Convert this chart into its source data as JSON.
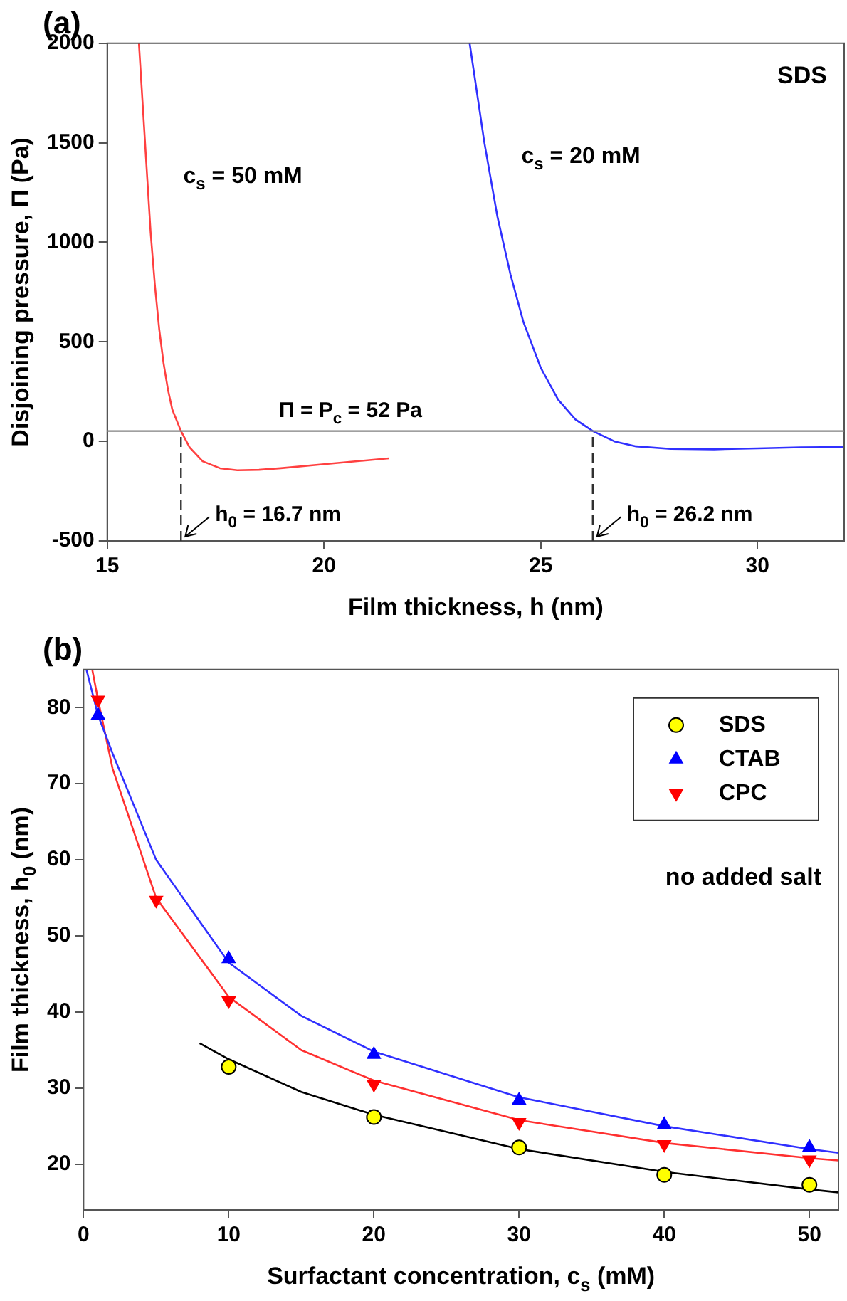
{
  "chart_data": [
    {
      "type": "line",
      "title": "(a)",
      "xlabel": "Film thickness, h (nm)",
      "ylabel": "Disjoining pressure, Π (Pa)",
      "xlim": [
        15,
        32
      ],
      "xticks": [
        15,
        20,
        25,
        30
      ],
      "ylim": [
        -500,
        2000
      ],
      "yticks": [
        -500,
        0,
        500,
        1000,
        1500,
        2000
      ],
      "series": [
        {
          "name": "c$_{s}$ = 50 mM",
          "color": "#ff4040",
          "x": [
            15.73,
            15.9,
            16.0,
            16.1,
            16.2,
            16.3,
            16.4,
            16.5,
            16.7,
            16.9,
            17.2,
            17.6,
            18.0,
            18.5,
            19.0,
            20.0,
            21.0,
            21.5
          ],
          "values": [
            2000,
            1400,
            1050,
            780,
            560,
            390,
            260,
            160,
            52,
            -30,
            -100,
            -135,
            -145,
            -143,
            -135,
            -115,
            -95,
            -85
          ]
        },
        {
          "name": "c$_{s}$ = 20 mM",
          "color": "#3030ff",
          "x": [
            23.36,
            23.7,
            24.0,
            24.3,
            24.6,
            25.0,
            25.4,
            25.8,
            26.2,
            26.7,
            27.2,
            28.0,
            29.0,
            30.0,
            31.0,
            32.0
          ],
          "values": [
            2000,
            1500,
            1130,
            840,
            600,
            370,
            210,
            110,
            52,
            0,
            -25,
            -38,
            -40,
            -35,
            -30,
            -28
          ]
        }
      ],
      "ref_lines": [
        {
          "axis": "y",
          "value": 52,
          "label": "Π = P$_{c}$ = 52 Pa",
          "color": "#808080"
        },
        {
          "axis": "x",
          "value": 16.7,
          "label": "h$_{0}$ = 16.7 nm",
          "color": "#303030",
          "line_style": "dashed"
        },
        {
          "axis": "x",
          "value": 26.2,
          "label": "h$_{0}$ = 26.2 nm",
          "color": "#303030",
          "line_style": "dashed"
        }
      ],
      "annotations": [
        "SDS"
      ]
    },
    {
      "type": "scatter",
      "title": "(b)",
      "xlabel": "Surfactant concentration, c$_{s}$ (mM)",
      "ylabel": "Film thickness, h$_{0}$ (nm)",
      "xlim": [
        0,
        52
      ],
      "xticks": [
        0,
        10,
        20,
        30,
        40,
        50
      ],
      "ylim": [
        14,
        85
      ],
      "yticks": [
        20,
        30,
        40,
        50,
        60,
        70,
        80
      ],
      "legend": "top right",
      "series": [
        {
          "name": "SDS",
          "color": "#ffff00",
          "marker": "circle",
          "x": [
            10,
            20,
            30,
            40,
            50
          ],
          "values": [
            32.8,
            26.2,
            22.2,
            18.6,
            17.3
          ]
        },
        {
          "name": "CTAB",
          "color": "#0000ff",
          "marker": "triangle",
          "x": [
            1,
            10,
            20,
            30,
            40,
            50
          ],
          "values": [
            79.0,
            47.0,
            34.4,
            28.4,
            25.2,
            22.2
          ]
        },
        {
          "name": "CPC",
          "color": "#ff0000",
          "marker": "triangle-down",
          "x": [
            1,
            5,
            10,
            20,
            30,
            40,
            50
          ],
          "values": [
            81.0,
            54.7,
            41.5,
            30.5,
            25.5,
            22.6,
            20.6
          ]
        },
        {
          "type": "line",
          "color": "#000000",
          "x": [
            8,
            10,
            15,
            20,
            30,
            40,
            50,
            52
          ],
          "values": [
            35.9,
            33.8,
            29.5,
            26.5,
            22.0,
            19.0,
            16.7,
            16.3
          ]
        },
        {
          "type": "line",
          "color": "#3030ff",
          "x": [
            0.2,
            1,
            2,
            5,
            10,
            15,
            20,
            30,
            40,
            50,
            52
          ],
          "values": [
            85,
            79,
            74,
            60,
            46.5,
            39.5,
            34.8,
            28.8,
            25.0,
            22.0,
            21.5
          ]
        },
        {
          "type": "line",
          "color": "#ff3030",
          "x": [
            0.6,
            1,
            2,
            5,
            10,
            15,
            20,
            30,
            40,
            50,
            52
          ],
          "values": [
            85,
            81,
            72,
            55,
            42,
            35,
            31,
            25.8,
            22.8,
            20.8,
            20.5
          ]
        }
      ],
      "annotations": [
        "no added salt"
      ]
    }
  ]
}
